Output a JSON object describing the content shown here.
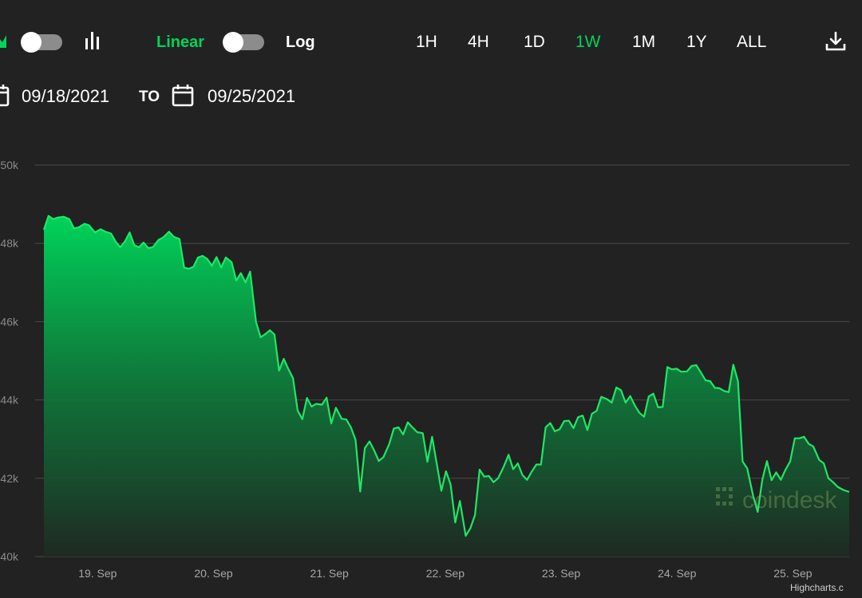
{
  "toolbar": {
    "scale_linear_label": "Linear",
    "scale_log_label": "Log",
    "ranges": [
      "1H",
      "4H",
      "1D",
      "1W",
      "1M",
      "1Y",
      "ALL"
    ],
    "active_range": "1W",
    "accent_color": "#00d45a"
  },
  "date_range": {
    "from": "09/18/2021",
    "separator": "TO",
    "to": "09/25/2021"
  },
  "watermark": "coindesk",
  "credits": "Highcharts.c",
  "chart_data": {
    "type": "area",
    "title": "",
    "xlabel": "",
    "ylabel": "",
    "ylim": [
      40000,
      50000
    ],
    "y_ticks": [
      40000,
      42000,
      44000,
      46000,
      48000,
      50000
    ],
    "y_tick_labels": [
      "40k",
      "42k",
      "44k",
      "46k",
      "48k",
      "50k"
    ],
    "x_ticks": [
      "19. Sep",
      "20. Sep",
      "21. Sep",
      "22. Sep",
      "23. Sep",
      "24. Sep",
      "25. Sep"
    ],
    "x_range_days": [
      18.55,
      25.5
    ],
    "grid": true,
    "series": [
      {
        "values": [
          [
            18.55,
            48350
          ],
          [
            18.59,
            48700
          ],
          [
            18.63,
            48620
          ],
          [
            18.67,
            48660
          ],
          [
            18.72,
            48680
          ],
          [
            18.77,
            48620
          ],
          [
            18.81,
            48380
          ],
          [
            18.85,
            48410
          ],
          [
            18.9,
            48500
          ],
          [
            18.94,
            48460
          ],
          [
            18.99,
            48280
          ],
          [
            19.04,
            48360
          ],
          [
            19.08,
            48300
          ],
          [
            19.13,
            48250
          ],
          [
            19.17,
            48040
          ],
          [
            19.21,
            47900
          ],
          [
            19.25,
            48050
          ],
          [
            19.29,
            48280
          ],
          [
            19.33,
            47960
          ],
          [
            19.37,
            47900
          ],
          [
            19.41,
            48020
          ],
          [
            19.45,
            47880
          ],
          [
            19.49,
            47900
          ],
          [
            19.54,
            48090
          ],
          [
            19.58,
            48150
          ],
          [
            19.63,
            48300
          ],
          [
            19.67,
            48170
          ],
          [
            19.72,
            48110
          ],
          [
            19.76,
            47380
          ],
          [
            19.8,
            47350
          ],
          [
            19.84,
            47400
          ],
          [
            19.88,
            47640
          ],
          [
            19.92,
            47680
          ],
          [
            19.96,
            47600
          ],
          [
            20.0,
            47430
          ],
          [
            20.04,
            47650
          ],
          [
            20.08,
            47380
          ],
          [
            20.12,
            47640
          ],
          [
            20.17,
            47520
          ],
          [
            20.21,
            47050
          ],
          [
            20.25,
            47240
          ],
          [
            20.29,
            47000
          ],
          [
            20.33,
            47280
          ],
          [
            20.38,
            46000
          ],
          [
            20.42,
            45600
          ],
          [
            20.46,
            45680
          ],
          [
            20.5,
            45780
          ],
          [
            20.54,
            45670
          ],
          [
            20.58,
            44750
          ],
          [
            20.62,
            45050
          ],
          [
            20.66,
            44790
          ],
          [
            20.7,
            44560
          ],
          [
            20.74,
            43730
          ],
          [
            20.78,
            43510
          ],
          [
            20.82,
            44050
          ],
          [
            20.86,
            43830
          ],
          [
            20.9,
            43900
          ],
          [
            20.95,
            43880
          ],
          [
            20.99,
            44060
          ],
          [
            21.03,
            43400
          ],
          [
            21.07,
            43800
          ],
          [
            21.12,
            43520
          ],
          [
            21.16,
            43500
          ],
          [
            21.2,
            43300
          ],
          [
            21.24,
            42980
          ],
          [
            21.28,
            41660
          ],
          [
            21.32,
            42770
          ],
          [
            21.36,
            42940
          ],
          [
            21.4,
            42710
          ],
          [
            21.44,
            42440
          ],
          [
            21.48,
            42540
          ],
          [
            21.53,
            42870
          ],
          [
            21.57,
            43270
          ],
          [
            21.61,
            43300
          ],
          [
            21.65,
            43120
          ],
          [
            21.69,
            43430
          ],
          [
            21.73,
            43300
          ],
          [
            21.77,
            43180
          ],
          [
            21.82,
            43150
          ],
          [
            21.86,
            42420
          ],
          [
            21.9,
            43060
          ],
          [
            21.94,
            42370
          ],
          [
            21.98,
            41680
          ],
          [
            22.02,
            42180
          ],
          [
            22.06,
            41840
          ],
          [
            22.1,
            40870
          ],
          [
            22.14,
            41420
          ],
          [
            22.19,
            40530
          ],
          [
            22.23,
            40720
          ],
          [
            22.27,
            41060
          ],
          [
            22.31,
            42220
          ],
          [
            22.35,
            42040
          ],
          [
            22.39,
            42060
          ],
          [
            22.43,
            41900
          ],
          [
            22.47,
            42000
          ],
          [
            22.52,
            42310
          ],
          [
            22.56,
            42600
          ],
          [
            22.6,
            42230
          ],
          [
            22.64,
            42380
          ],
          [
            22.68,
            42080
          ],
          [
            22.72,
            41960
          ],
          [
            22.76,
            42170
          ],
          [
            22.8,
            42350
          ],
          [
            22.84,
            42350
          ],
          [
            22.88,
            43300
          ],
          [
            22.92,
            43410
          ],
          [
            22.96,
            43200
          ],
          [
            23.0,
            43250
          ],
          [
            23.04,
            43460
          ],
          [
            23.08,
            43470
          ],
          [
            23.12,
            43280
          ],
          [
            23.16,
            43560
          ],
          [
            23.2,
            43600
          ],
          [
            23.24,
            43230
          ],
          [
            23.28,
            43650
          ],
          [
            23.32,
            43720
          ],
          [
            23.36,
            44080
          ],
          [
            23.41,
            44020
          ],
          [
            23.45,
            43930
          ],
          [
            23.49,
            44320
          ],
          [
            23.53,
            44250
          ],
          [
            23.57,
            43930
          ],
          [
            23.61,
            44100
          ],
          [
            23.65,
            43860
          ],
          [
            23.69,
            43670
          ],
          [
            23.73,
            43570
          ],
          [
            23.77,
            44090
          ],
          [
            23.81,
            44160
          ],
          [
            23.85,
            43810
          ],
          [
            23.89,
            43820
          ],
          [
            23.93,
            44840
          ],
          [
            23.97,
            44780
          ],
          [
            24.01,
            44800
          ],
          [
            24.05,
            44720
          ],
          [
            24.1,
            44730
          ],
          [
            24.14,
            44870
          ],
          [
            24.18,
            44890
          ],
          [
            24.22,
            44700
          ],
          [
            24.26,
            44500
          ],
          [
            24.3,
            44480
          ],
          [
            24.34,
            44310
          ],
          [
            24.38,
            44300
          ],
          [
            24.42,
            44230
          ],
          [
            24.46,
            44200
          ],
          [
            24.5,
            44900
          ],
          [
            24.54,
            44480
          ],
          [
            24.58,
            42430
          ],
          [
            24.62,
            42250
          ],
          [
            24.67,
            41560
          ],
          [
            24.71,
            41140
          ],
          [
            24.75,
            41960
          ],
          [
            24.79,
            42440
          ],
          [
            24.83,
            41950
          ],
          [
            24.87,
            42150
          ],
          [
            24.91,
            41960
          ],
          [
            24.95,
            42220
          ],
          [
            24.99,
            42430
          ],
          [
            25.03,
            43020
          ],
          [
            25.07,
            43020
          ],
          [
            25.11,
            43060
          ],
          [
            25.15,
            42880
          ],
          [
            25.19,
            42810
          ],
          [
            25.24,
            42470
          ],
          [
            25.28,
            42380
          ],
          [
            25.32,
            42000
          ],
          [
            25.36,
            41900
          ],
          [
            25.4,
            41780
          ],
          [
            25.45,
            41700
          ],
          [
            25.5,
            41650
          ]
        ]
      }
    ]
  }
}
